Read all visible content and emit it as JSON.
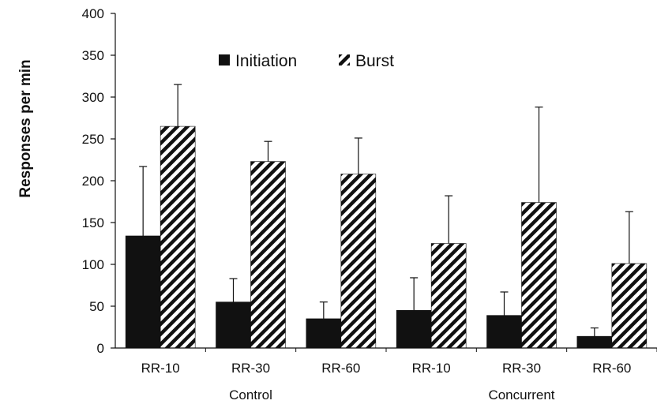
{
  "chart_data": {
    "type": "bar",
    "ylabel": "Responses per min",
    "xlabel": "",
    "ylim": [
      0,
      400
    ],
    "yticks": [
      0,
      50,
      100,
      150,
      200,
      250,
      300,
      350,
      400
    ],
    "categories": [
      "RR-10",
      "RR-30",
      "RR-60",
      "RR-10",
      "RR-30",
      "RR-60"
    ],
    "groups": [
      {
        "label": "Control",
        "categories": [
          0,
          1,
          2
        ]
      },
      {
        "label": "Concurrent",
        "categories": [
          3,
          4,
          5
        ]
      }
    ],
    "series": [
      {
        "name": "Initiation",
        "pattern": "solid",
        "color": "#111111",
        "values": [
          134,
          55,
          35,
          45,
          39,
          14
        ],
        "errors": [
          83,
          28,
          20,
          39,
          28,
          10
        ]
      },
      {
        "name": "Burst",
        "pattern": "hatched",
        "color": "#111111",
        "values": [
          265,
          223,
          208,
          125,
          174,
          101
        ],
        "errors": [
          50,
          24,
          43,
          57,
          114,
          62
        ]
      }
    ],
    "legend_position": "top-center",
    "grid": false
  }
}
